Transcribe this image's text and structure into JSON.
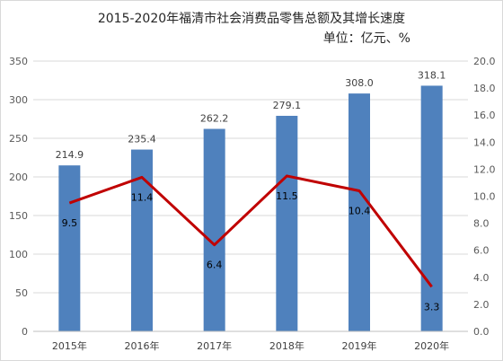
{
  "chart_data": {
    "type": "bar",
    "title": "2015-2020年福清市社会消费品零售总额及其增长速度",
    "subtitle": "单位：亿元、%",
    "categories": [
      "2015年",
      "2016年",
      "2017年",
      "2018年",
      "2019年",
      "2020年"
    ],
    "series": [
      {
        "type": "bar",
        "axis": "left",
        "values": [
          214.9,
          235.4,
          262.2,
          279.1,
          308.0,
          318.1
        ],
        "labels": [
          "214.9",
          "235.4",
          "262.2",
          "279.1",
          "308.0",
          "318.1"
        ],
        "color": "#4f81bd"
      },
      {
        "type": "line",
        "axis": "right",
        "values": [
          9.5,
          11.4,
          6.4,
          11.5,
          10.4,
          3.3
        ],
        "labels": [
          "9.5",
          "11.4",
          "6.4",
          "11.5",
          "10.4",
          "3.3"
        ],
        "color": "#c00000"
      }
    ],
    "left_axis": {
      "ylim": [
        0,
        350
      ],
      "ticks": [
        "0",
        "50",
        "100",
        "150",
        "200",
        "250",
        "300",
        "350"
      ]
    },
    "right_axis": {
      "ylim": [
        0,
        20
      ],
      "ticks": [
        "0.0",
        "2.0",
        "4.0",
        "6.0",
        "8.0",
        "10.0",
        "12.0",
        "14.0",
        "16.0",
        "18.0",
        "20.0"
      ]
    },
    "grid": true,
    "legend": "none"
  }
}
